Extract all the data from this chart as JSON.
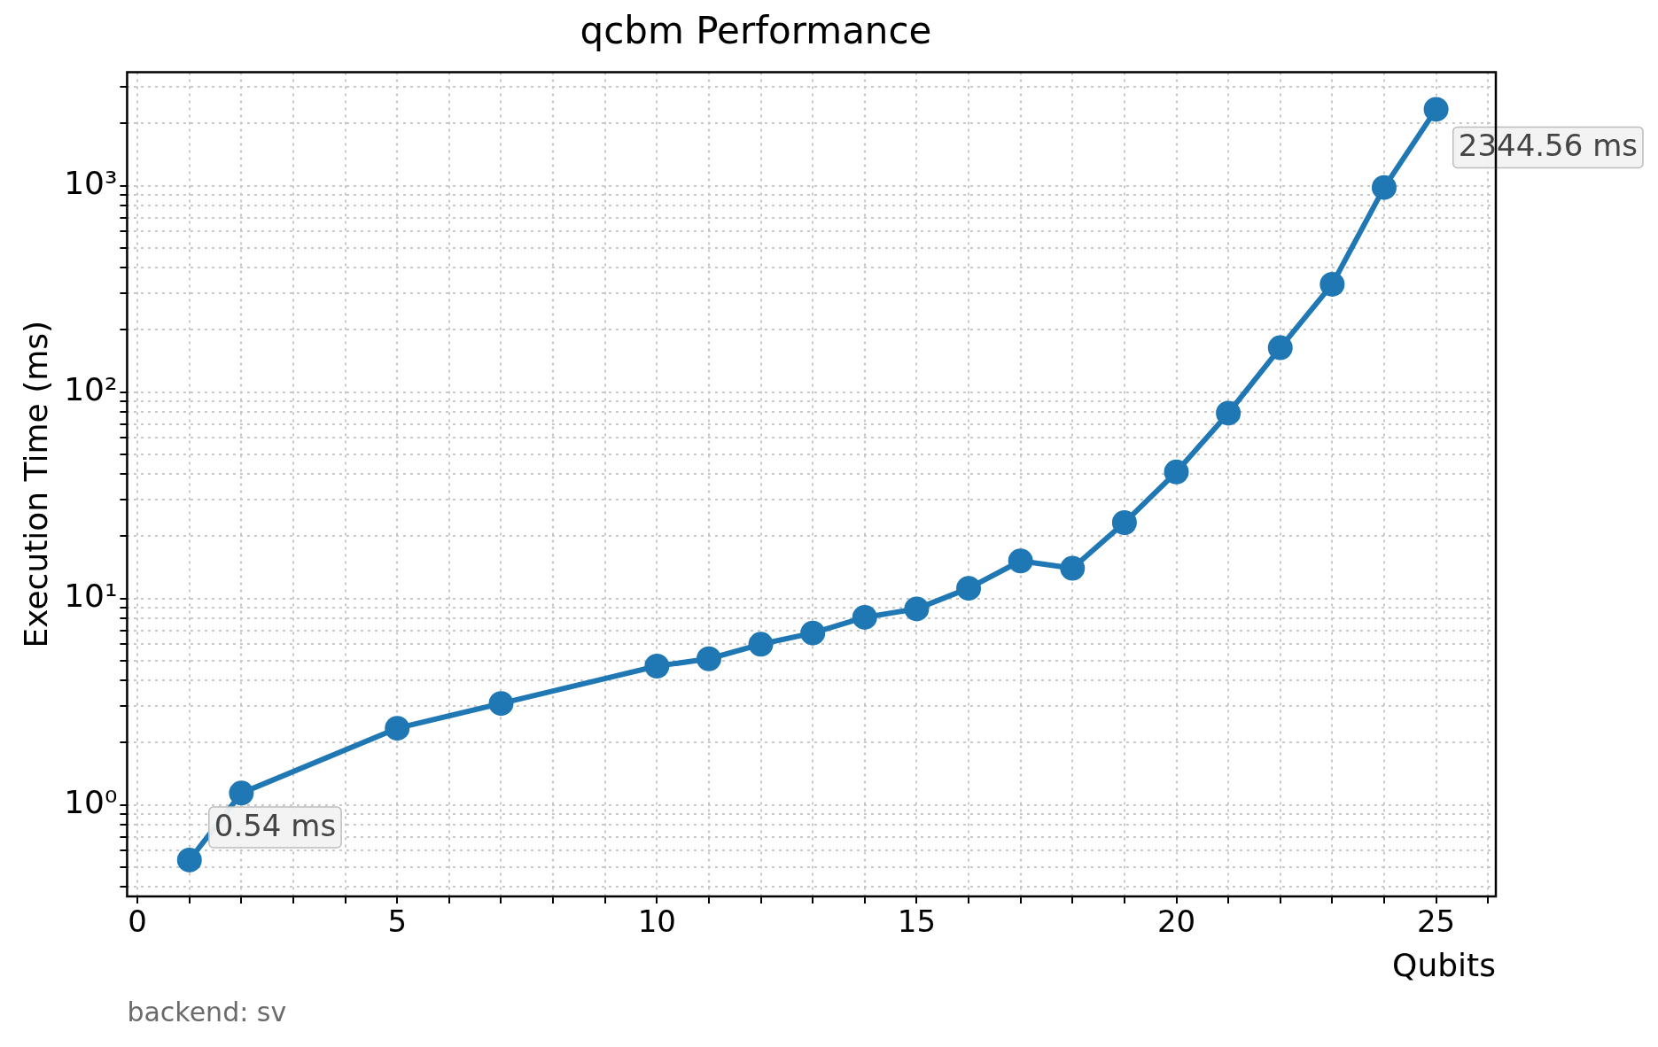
{
  "chart_data": {
    "type": "line",
    "title": "qcbm Performance",
    "xlabel": "Qubits",
    "ylabel": "Execution Time (ms)",
    "x": [
      1,
      2,
      5,
      7,
      10,
      11,
      12,
      13,
      14,
      15,
      16,
      17,
      18,
      19,
      20,
      21,
      22,
      23,
      24,
      25
    ],
    "series": [
      {
        "color": "#1f77b4",
        "values": [
          0.54,
          1.14,
          2.35,
          3.1,
          4.7,
          5.1,
          6.0,
          6.8,
          8.1,
          8.9,
          11.2,
          15.2,
          14.0,
          23.3,
          41,
          79,
          164,
          333,
          980,
          2344.56
        ]
      }
    ],
    "log": "y",
    "xlim": [
      -0.2,
      26.15
    ],
    "ylim": [
      0.36,
      3550
    ],
    "xticks": [
      0,
      {
        "value": 1,
        "label": null
      },
      {
        "value": 2,
        "label": null
      },
      {
        "value": 3,
        "label": null
      },
      {
        "value": 4,
        "label": null
      },
      5,
      {
        "value": 6,
        "label": null
      },
      {
        "value": 7,
        "label": null
      },
      {
        "value": 8,
        "label": null
      },
      {
        "value": 9,
        "label": null
      },
      10,
      {
        "value": 11,
        "label": null
      },
      {
        "value": 12,
        "label": null
      },
      {
        "value": 13,
        "label": null
      },
      {
        "value": 14,
        "label": null
      },
      15,
      {
        "value": 16,
        "label": null
      },
      {
        "value": 17,
        "label": null
      },
      {
        "value": 18,
        "label": null
      },
      {
        "value": 19,
        "label": null
      },
      20,
      {
        "value": 21,
        "label": null
      },
      {
        "value": 22,
        "label": null
      },
      {
        "value": 23,
        "label": null
      },
      {
        "value": 24,
        "label": null
      },
      25,
      {
        "value": 26,
        "label": null
      }
    ],
    "yticks": [
      {
        "value": 0.4,
        "label": null
      },
      {
        "value": 0.5,
        "label": null
      },
      {
        "value": 0.6,
        "label": null
      },
      {
        "value": 0.7,
        "label": null
      },
      {
        "value": 0.8,
        "label": null
      },
      {
        "value": 0.9,
        "label": null
      },
      {
        "value": 1,
        "label": "10⁰"
      },
      {
        "value": 2,
        "label": null
      },
      {
        "value": 3,
        "label": null
      },
      {
        "value": 4,
        "label": null
      },
      {
        "value": 5,
        "label": null
      },
      {
        "value": 6,
        "label": null
      },
      {
        "value": 7,
        "label": null
      },
      {
        "value": 8,
        "label": null
      },
      {
        "value": 9,
        "label": null
      },
      {
        "value": 10,
        "label": "10¹"
      },
      {
        "value": 20,
        "label": null
      },
      {
        "value": 30,
        "label": null
      },
      {
        "value": 40,
        "label": null
      },
      {
        "value": 50,
        "label": null
      },
      {
        "value": 60,
        "label": null
      },
      {
        "value": 70,
        "label": null
      },
      {
        "value": 80,
        "label": null
      },
      {
        "value": 90,
        "label": null
      },
      {
        "value": 100,
        "label": "10²"
      },
      {
        "value": 200,
        "label": null
      },
      {
        "value": 300,
        "label": null
      },
      {
        "value": 400,
        "label": null
      },
      {
        "value": 500,
        "label": null
      },
      {
        "value": 600,
        "label": null
      },
      {
        "value": 700,
        "label": null
      },
      {
        "value": 800,
        "label": null
      },
      {
        "value": 900,
        "label": null
      },
      {
        "value": 1000,
        "label": "10³"
      },
      {
        "value": 2000,
        "label": null
      },
      {
        "value": 3000,
        "label": null
      }
    ],
    "grid": true,
    "marker": "circle",
    "line_style": "solid",
    "annotations": [
      {
        "text": "0.54 ms",
        "x": 1,
        "y": 0.54
      },
      {
        "text": "2344.56 ms",
        "x": 25,
        "y": 2344.56
      },
      "backend: sv"
    ]
  }
}
